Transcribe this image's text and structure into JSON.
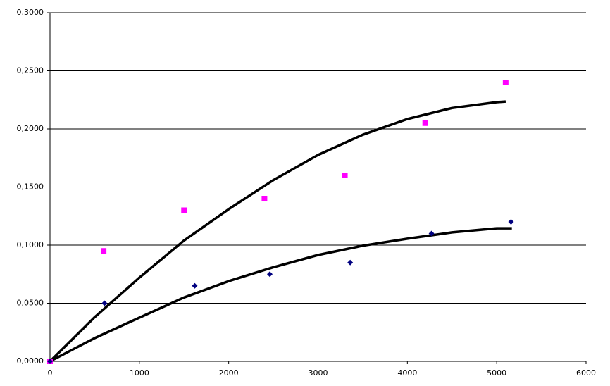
{
  "chart_data": {
    "type": "scatter",
    "xlim": [
      0,
      6000
    ],
    "xticks": [
      0,
      1000,
      2000,
      3000,
      4000,
      5000,
      6000
    ],
    "ylim": [
      0,
      0.3
    ],
    "yticks": [
      {
        "value": 0,
        "label": "0,0000"
      },
      {
        "value": 0.05,
        "label": "0,0500"
      },
      {
        "value": 0.1,
        "label": "0,1000"
      },
      {
        "value": 0.15,
        "label": "0,1500"
      },
      {
        "value": 0.2,
        "label": "0,2000"
      },
      {
        "value": 0.25,
        "label": "0,2500"
      },
      {
        "value": 0.3,
        "label": "0,3000"
      }
    ],
    "grid": true,
    "series": [
      {
        "color": "#ff00ff",
        "marker": "square",
        "x": [
          0,
          600,
          1500,
          2400,
          3300,
          4200,
          5100
        ],
        "values": [
          0,
          0.095,
          0.13,
          0.14,
          0.16,
          0.205,
          0.24
        ]
      },
      {
        "color": "#000080",
        "marker": "diamond",
        "x": [
          0,
          610,
          1620,
          2460,
          3360,
          4270,
          5160
        ],
        "values": [
          0,
          0.05,
          0.065,
          0.075,
          0.085,
          0.11,
          0.12
        ]
      }
    ],
    "trendlines": [
      {
        "color": "#000000",
        "x": [
          0,
          500,
          1000,
          1500,
          2000,
          2500,
          3000,
          3500,
          4000,
          4500,
          5000,
          5100
        ],
        "values": [
          0,
          0.038,
          0.072,
          0.104,
          0.131,
          0.156,
          0.1776,
          0.195,
          0.2085,
          0.218,
          0.223,
          0.2236
        ]
      },
      {
        "color": "#000000",
        "x": [
          0,
          500,
          1000,
          1500,
          2000,
          2500,
          3000,
          3500,
          4000,
          4500,
          5000,
          5170
        ],
        "values": [
          0,
          0.02,
          0.0376,
          0.055,
          0.069,
          0.081,
          0.0915,
          0.0995,
          0.1055,
          0.111,
          0.1145,
          0.1145
        ]
      }
    ]
  }
}
